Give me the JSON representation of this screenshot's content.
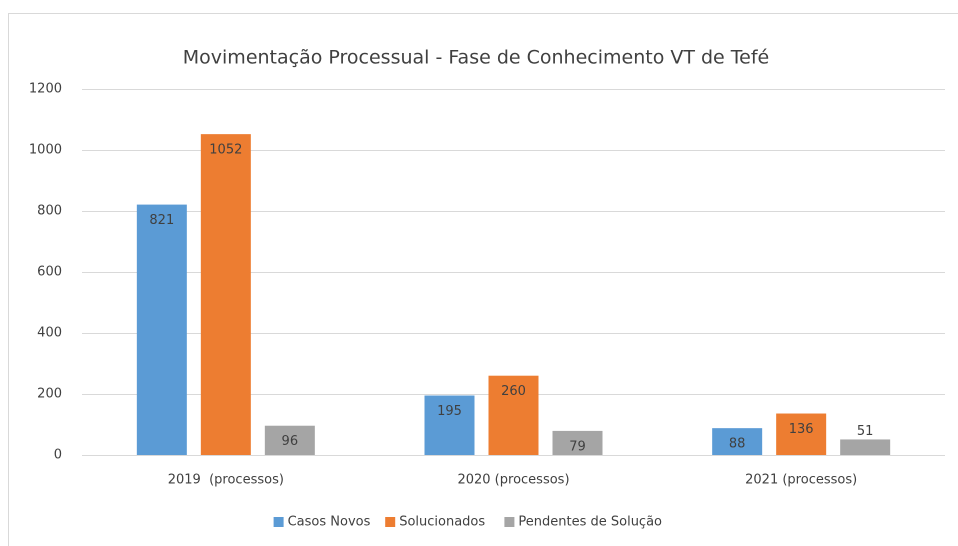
{
  "chart_data": {
    "type": "bar",
    "title": "Movimentação Processual - Fase de Conhecimento VT de Tefé",
    "categories": [
      "2019  (processos)",
      "2020 (processos)",
      "2021 (processos)"
    ],
    "series": [
      {
        "name": "Casos Novos",
        "color": "#5b9bd5",
        "values": [
          821,
          195,
          88
        ]
      },
      {
        "name": "Solucionados",
        "color": "#ed7d31",
        "values": [
          1052,
          260,
          136
        ]
      },
      {
        "name": "Pendentes de Solução",
        "color": "#a5a5a5",
        "values": [
          96,
          79,
          51
        ]
      }
    ],
    "ylim": [
      0,
      1200
    ],
    "yticks": [
      0,
      200,
      400,
      600,
      800,
      1000,
      1200
    ],
    "grid": true,
    "legend": "bottom"
  }
}
